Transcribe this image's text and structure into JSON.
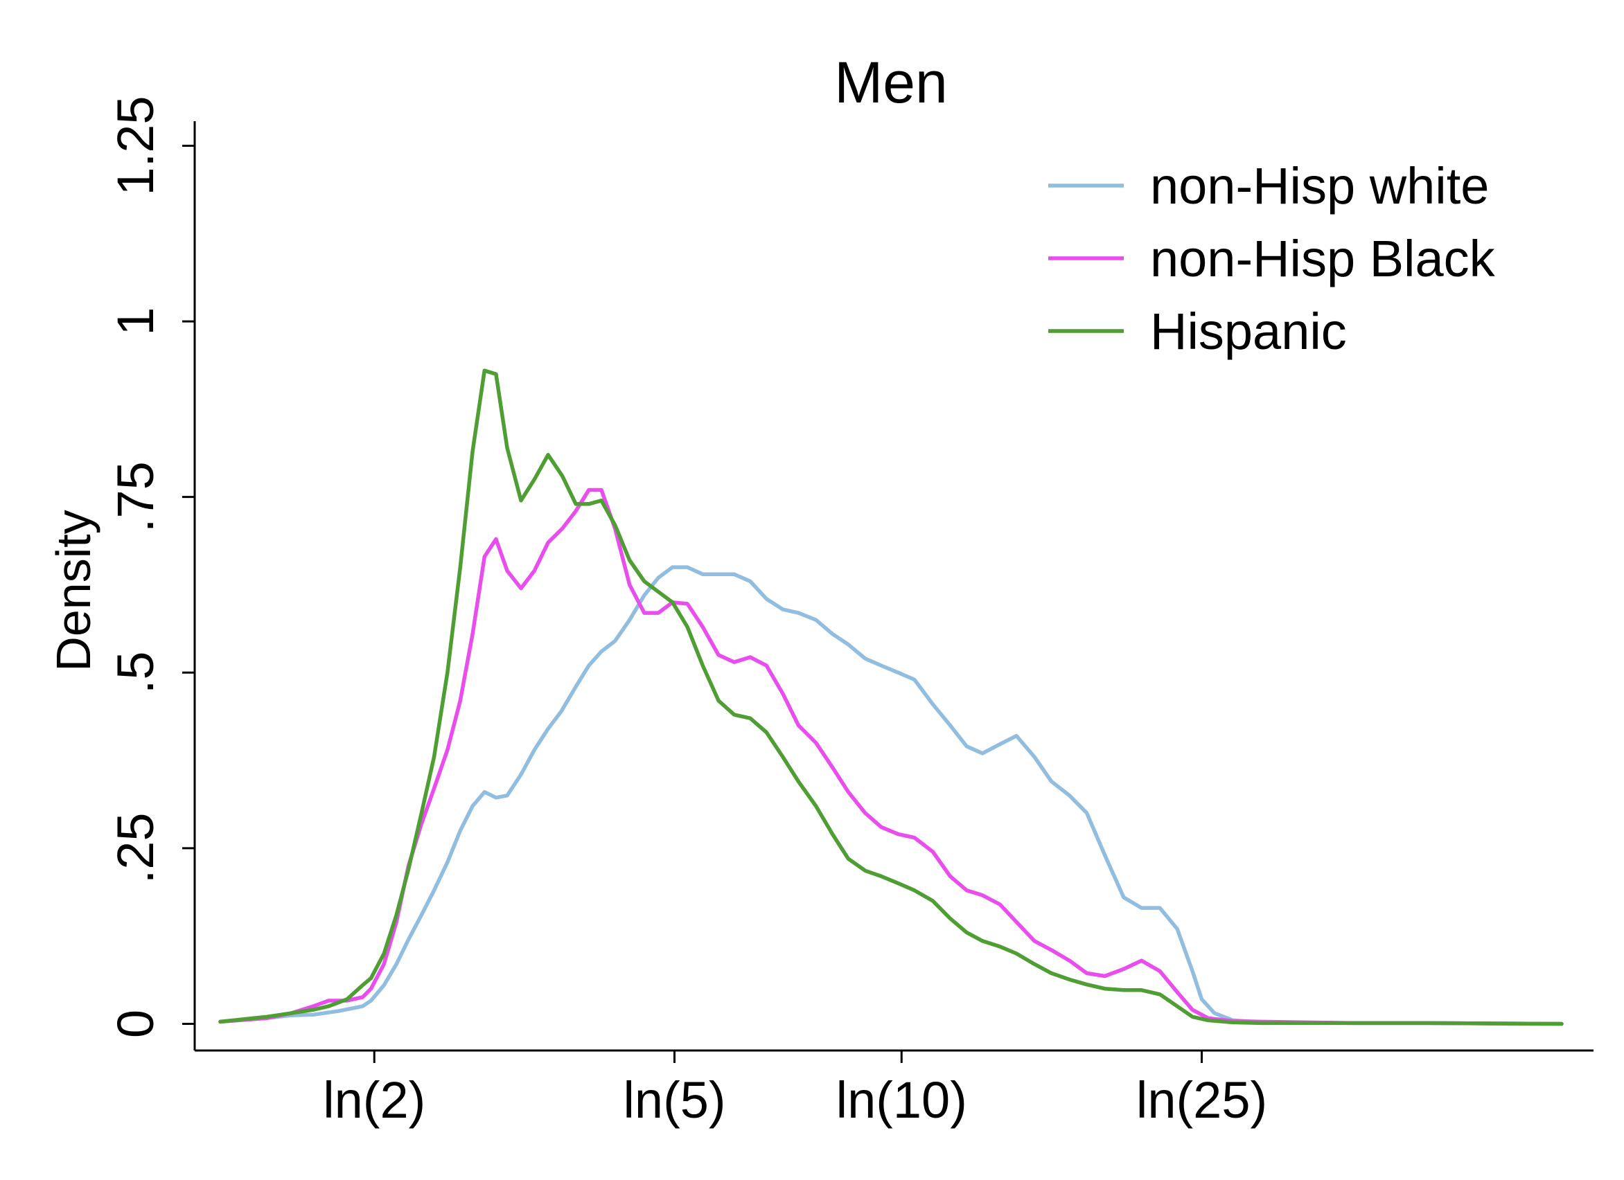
{
  "chart_data": {
    "type": "line",
    "title": "Men",
    "xlabel": "",
    "ylabel": "Density",
    "x_scale": "log",
    "x_ticks": [
      {
        "value": 2,
        "label": "ln(2)"
      },
      {
        "value": 5,
        "label": "ln(5)"
      },
      {
        "value": 10,
        "label": "ln(10)"
      },
      {
        "value": 25,
        "label": "ln(25)"
      }
    ],
    "y_ticks": [
      {
        "value": 0,
        "label": "0"
      },
      {
        "value": 0.25,
        "label": ".25"
      },
      {
        "value": 0.5,
        "label": ".5"
      },
      {
        "value": 0.75,
        "label": ".75"
      },
      {
        "value": 1,
        "label": "1"
      },
      {
        "value": 1.25,
        "label": "1.25"
      }
    ],
    "xlim": [
      1.25,
      75
    ],
    "ylim": [
      -0.038,
      1.285
    ],
    "grid": false,
    "legend_position": "top-right",
    "series": [
      {
        "name": "non-Hisp white",
        "color": "#91bde0",
        "points": [
          [
            1.25,
            0.003
          ],
          [
            1.44,
            0.008
          ],
          [
            1.55,
            0.012
          ],
          [
            1.66,
            0.013
          ],
          [
            1.79,
            0.018
          ],
          [
            1.93,
            0.025
          ],
          [
            1.98,
            0.033
          ],
          [
            2.06,
            0.055
          ],
          [
            2.14,
            0.085
          ],
          [
            2.22,
            0.12
          ],
          [
            2.31,
            0.155
          ],
          [
            2.4,
            0.19
          ],
          [
            2.5,
            0.23
          ],
          [
            2.6,
            0.275
          ],
          [
            2.7,
            0.31
          ],
          [
            2.8,
            0.33
          ],
          [
            2.9,
            0.322
          ],
          [
            3.0,
            0.325
          ],
          [
            3.13,
            0.355
          ],
          [
            3.26,
            0.39
          ],
          [
            3.4,
            0.42
          ],
          [
            3.54,
            0.445
          ],
          [
            3.7,
            0.48
          ],
          [
            3.85,
            0.51
          ],
          [
            4.0,
            0.53
          ],
          [
            4.17,
            0.545
          ],
          [
            4.36,
            0.575
          ],
          [
            4.56,
            0.61
          ],
          [
            4.76,
            0.635
          ],
          [
            4.97,
            0.65
          ],
          [
            5.2,
            0.65
          ],
          [
            5.45,
            0.64
          ],
          [
            5.72,
            0.64
          ],
          [
            6.0,
            0.64
          ],
          [
            6.3,
            0.63
          ],
          [
            6.62,
            0.605
          ],
          [
            6.96,
            0.59
          ],
          [
            7.3,
            0.585
          ],
          [
            7.7,
            0.575
          ],
          [
            8.1,
            0.555
          ],
          [
            8.5,
            0.54
          ],
          [
            8.95,
            0.52
          ],
          [
            9.4,
            0.51
          ],
          [
            9.9,
            0.5
          ],
          [
            10.4,
            0.49
          ],
          [
            11.0,
            0.455
          ],
          [
            11.6,
            0.425
          ],
          [
            12.2,
            0.395
          ],
          [
            12.8,
            0.385
          ],
          [
            13.5,
            0.398
          ],
          [
            14.2,
            0.41
          ],
          [
            15.0,
            0.38
          ],
          [
            15.8,
            0.345
          ],
          [
            16.7,
            0.325
          ],
          [
            17.6,
            0.3
          ],
          [
            18.6,
            0.24
          ],
          [
            19.7,
            0.18
          ],
          [
            20.8,
            0.165
          ],
          [
            22.0,
            0.165
          ],
          [
            23.2,
            0.135
          ],
          [
            24.3,
            0.075
          ],
          [
            25.0,
            0.035
          ],
          [
            26.0,
            0.015
          ],
          [
            27.5,
            0.005
          ],
          [
            30,
            0.002
          ],
          [
            40,
            0.001
          ],
          [
            50,
            0.001
          ],
          [
            75,
            0.0
          ]
        ]
      },
      {
        "name": "non-Hisp Black",
        "color": "#ea4ded",
        "points": [
          [
            1.25,
            0.003
          ],
          [
            1.44,
            0.008
          ],
          [
            1.55,
            0.015
          ],
          [
            1.66,
            0.025
          ],
          [
            1.74,
            0.033
          ],
          [
            1.84,
            0.033
          ],
          [
            1.93,
            0.038
          ],
          [
            1.98,
            0.05
          ],
          [
            2.06,
            0.085
          ],
          [
            2.14,
            0.145
          ],
          [
            2.22,
            0.225
          ],
          [
            2.31,
            0.285
          ],
          [
            2.4,
            0.335
          ],
          [
            2.5,
            0.39
          ],
          [
            2.6,
            0.46
          ],
          [
            2.7,
            0.555
          ],
          [
            2.8,
            0.665
          ],
          [
            2.9,
            0.69
          ],
          [
            3.0,
            0.645
          ],
          [
            3.13,
            0.62
          ],
          [
            3.26,
            0.645
          ],
          [
            3.4,
            0.685
          ],
          [
            3.55,
            0.705
          ],
          [
            3.7,
            0.73
          ],
          [
            3.85,
            0.76
          ],
          [
            4.0,
            0.76
          ],
          [
            4.17,
            0.705
          ],
          [
            4.36,
            0.625
          ],
          [
            4.56,
            0.585
          ],
          [
            4.76,
            0.585
          ],
          [
            4.97,
            0.6
          ],
          [
            5.2,
            0.598
          ],
          [
            5.45,
            0.565
          ],
          [
            5.72,
            0.525
          ],
          [
            6.0,
            0.515
          ],
          [
            6.3,
            0.522
          ],
          [
            6.62,
            0.51
          ],
          [
            6.96,
            0.47
          ],
          [
            7.3,
            0.425
          ],
          [
            7.7,
            0.4
          ],
          [
            8.1,
            0.365
          ],
          [
            8.5,
            0.33
          ],
          [
            8.95,
            0.3
          ],
          [
            9.4,
            0.28
          ],
          [
            9.9,
            0.27
          ],
          [
            10.4,
            0.265
          ],
          [
            11.0,
            0.245
          ],
          [
            11.6,
            0.21
          ],
          [
            12.2,
            0.19
          ],
          [
            12.8,
            0.183
          ],
          [
            13.5,
            0.17
          ],
          [
            14.2,
            0.145
          ],
          [
            15.0,
            0.118
          ],
          [
            15.8,
            0.105
          ],
          [
            16.7,
            0.09
          ],
          [
            17.6,
            0.072
          ],
          [
            18.6,
            0.068
          ],
          [
            19.7,
            0.078
          ],
          [
            20.8,
            0.09
          ],
          [
            22.0,
            0.075
          ],
          [
            23.2,
            0.045
          ],
          [
            24.3,
            0.02
          ],
          [
            25.5,
            0.008
          ],
          [
            27.5,
            0.004
          ],
          [
            30,
            0.003
          ],
          [
            40,
            0.001
          ],
          [
            50,
            0.001
          ],
          [
            75,
            0.0
          ]
        ]
      },
      {
        "name": "Hispanic",
        "color": "#4f9e34",
        "points": [
          [
            1.25,
            0.003
          ],
          [
            1.44,
            0.01
          ],
          [
            1.55,
            0.015
          ],
          [
            1.66,
            0.02
          ],
          [
            1.74,
            0.025
          ],
          [
            1.84,
            0.035
          ],
          [
            1.93,
            0.055
          ],
          [
            1.98,
            0.065
          ],
          [
            2.06,
            0.1
          ],
          [
            2.14,
            0.155
          ],
          [
            2.22,
            0.22
          ],
          [
            2.31,
            0.3
          ],
          [
            2.4,
            0.38
          ],
          [
            2.5,
            0.5
          ],
          [
            2.6,
            0.65
          ],
          [
            2.7,
            0.815
          ],
          [
            2.8,
            0.93
          ],
          [
            2.9,
            0.925
          ],
          [
            3.0,
            0.82
          ],
          [
            3.13,
            0.745
          ],
          [
            3.26,
            0.775
          ],
          [
            3.4,
            0.81
          ],
          [
            3.55,
            0.78
          ],
          [
            3.7,
            0.74
          ],
          [
            3.85,
            0.74
          ],
          [
            4.0,
            0.745
          ],
          [
            4.17,
            0.71
          ],
          [
            4.36,
            0.66
          ],
          [
            4.56,
            0.63
          ],
          [
            4.76,
            0.615
          ],
          [
            4.97,
            0.6
          ],
          [
            5.2,
            0.565
          ],
          [
            5.45,
            0.51
          ],
          [
            5.72,
            0.46
          ],
          [
            6.0,
            0.44
          ],
          [
            6.3,
            0.435
          ],
          [
            6.62,
            0.415
          ],
          [
            6.96,
            0.38
          ],
          [
            7.3,
            0.345
          ],
          [
            7.7,
            0.31
          ],
          [
            8.1,
            0.27
          ],
          [
            8.5,
            0.235
          ],
          [
            8.95,
            0.218
          ],
          [
            9.4,
            0.21
          ],
          [
            9.9,
            0.2
          ],
          [
            10.4,
            0.19
          ],
          [
            11.0,
            0.175
          ],
          [
            11.6,
            0.15
          ],
          [
            12.2,
            0.13
          ],
          [
            12.8,
            0.118
          ],
          [
            13.5,
            0.11
          ],
          [
            14.2,
            0.1
          ],
          [
            15.0,
            0.085
          ],
          [
            15.8,
            0.072
          ],
          [
            16.7,
            0.063
          ],
          [
            17.6,
            0.056
          ],
          [
            18.6,
            0.05
          ],
          [
            19.7,
            0.048
          ],
          [
            20.8,
            0.048
          ],
          [
            22.0,
            0.042
          ],
          [
            23.2,
            0.025
          ],
          [
            24.3,
            0.01
          ],
          [
            25.5,
            0.005
          ],
          [
            27.5,
            0.002
          ],
          [
            30,
            0.001
          ],
          [
            40,
            0.001
          ],
          [
            50,
            0.001
          ],
          [
            75,
            0.0
          ]
        ]
      }
    ]
  }
}
